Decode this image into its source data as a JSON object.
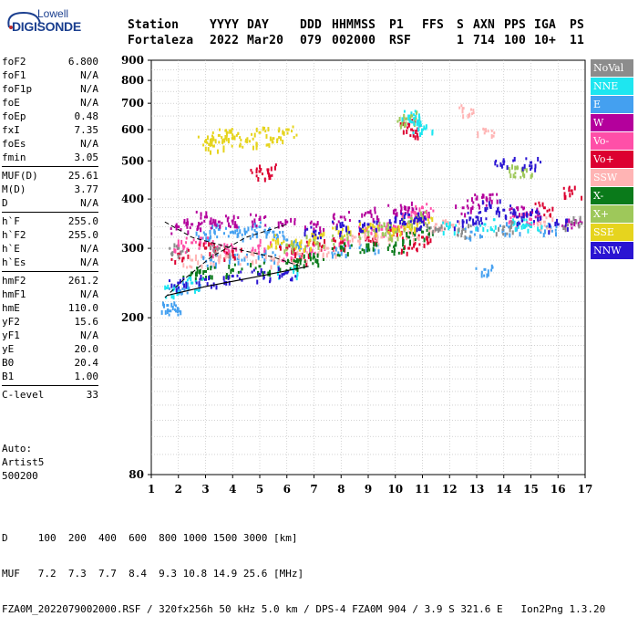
{
  "logo": {
    "line1": "Lowell",
    "line2": "DIGISONDE"
  },
  "header": {
    "labels": [
      "Station",
      "YYYY",
      "DAY",
      "DDD",
      "HHMMSS",
      "P1",
      "FFS",
      "S",
      "AXN",
      "PPS",
      "IGA",
      "PS"
    ],
    "values": [
      "Fortaleza",
      "2022",
      "Mar20",
      "079",
      "002000",
      "RSF",
      "",
      "1",
      "714",
      "100",
      "10+",
      "11"
    ]
  },
  "params": [
    [
      {
        "name": "foF2",
        "value": "6.800"
      },
      {
        "name": "foF1",
        "value": "N/A"
      },
      {
        "name": "foF1p",
        "value": "N/A"
      },
      {
        "name": "foE",
        "value": "N/A"
      },
      {
        "name": "foEp",
        "value": "0.48"
      },
      {
        "name": "fxI",
        "value": "7.35"
      },
      {
        "name": "foEs",
        "value": "N/A"
      },
      {
        "name": "fmin",
        "value": "3.05"
      }
    ],
    [
      {
        "name": "MUF(D)",
        "value": "25.61"
      },
      {
        "name": "M(D)",
        "value": "3.77"
      },
      {
        "name": "D",
        "value": "N/A"
      }
    ],
    [
      {
        "name": "h`F",
        "value": "255.0"
      },
      {
        "name": "h`F2",
        "value": "255.0"
      },
      {
        "name": "h`E",
        "value": "N/A"
      },
      {
        "name": "h`Es",
        "value": "N/A"
      }
    ],
    [
      {
        "name": "hmF2",
        "value": "261.2"
      },
      {
        "name": "hmF1",
        "value": "N/A"
      },
      {
        "name": "hmE",
        "value": "110.0"
      },
      {
        "name": "yF2",
        "value": "15.6"
      },
      {
        "name": "yF1",
        "value": "N/A"
      },
      {
        "name": "yE",
        "value": "20.0"
      },
      {
        "name": "B0",
        "value": "20.4"
      },
      {
        "name": "B1",
        "value": "1.00"
      }
    ],
    [
      {
        "name": "C-level",
        "value": "33"
      }
    ]
  ],
  "auto": [
    "Auto:",
    "Artist5",
    "500200"
  ],
  "legend": [
    {
      "label": "NoVal",
      "color": "#8c8c8c"
    },
    {
      "label": "NNE",
      "color": "#1ee6f0"
    },
    {
      "label": "E",
      "color": "#44a0f0"
    },
    {
      "label": "W",
      "color": "#b4009c"
    },
    {
      "label": "Vo-",
      "color": "#ff4fa8"
    },
    {
      "label": "Vo+",
      "color": "#dc0030"
    },
    {
      "label": "SSW",
      "color": "#ffb4b4"
    },
    {
      "label": "X-",
      "color": "#0a7a1a"
    },
    {
      "label": "X+",
      "color": "#9ec85a"
    },
    {
      "label": "SSE",
      "color": "#e6d41e"
    },
    {
      "label": "NNW",
      "color": "#2a14d2"
    }
  ],
  "footer": {
    "d_row": "D     100  200  400  600  800 1000 1500 3000 [km]",
    "muf_row": "MUF   7.2  7.3  7.7  8.4  9.3 10.8 14.9 25.6 [MHz]",
    "info": "FZA0M_2022079002000.RSF / 320fx256h 50 kHz 5.0 km / DPS-4 FZA0M 904 / 3.9 S 321.6 E   Ion2Png 1.3.20"
  },
  "chart_data": {
    "type": "scatter",
    "xlabel": "",
    "ylabel": "",
    "xlim": [
      1,
      17
    ],
    "ylim": [
      80,
      900
    ],
    "y_scale": "log",
    "xticks": [
      1,
      2,
      3,
      4,
      5,
      6,
      7,
      8,
      9,
      10,
      11,
      12,
      13,
      14,
      15,
      16,
      17
    ],
    "yticks": [
      80,
      200,
      300,
      400,
      500,
      600,
      700,
      800,
      900
    ],
    "grid": true,
    "legend_position": "right",
    "series": [
      {
        "name": "E",
        "color": "#44a0f0",
        "points": [
          [
            1.6,
            215
          ],
          [
            1.7,
            208
          ],
          [
            2.0,
            235
          ],
          [
            2.5,
            245
          ],
          [
            3.0,
            325
          ],
          [
            3.5,
            335
          ],
          [
            4.0,
            330
          ],
          [
            4.5,
            330
          ],
          [
            5.0,
            340
          ],
          [
            5.5,
            330
          ],
          [
            6.0,
            315
          ],
          [
            6.5,
            300
          ],
          [
            3.2,
            280
          ],
          [
            4.2,
            282
          ],
          [
            5.2,
            290
          ],
          [
            8.0,
            300
          ],
          [
            9.0,
            300
          ],
          [
            13.3,
            265
          ],
          [
            12.8,
            330
          ],
          [
            14.2,
            340
          ],
          [
            15.6,
            340
          ]
        ]
      },
      {
        "name": "W",
        "color": "#b4009c",
        "points": [
          [
            2.0,
            340
          ],
          [
            2.5,
            345
          ],
          [
            3.0,
            360
          ],
          [
            3.5,
            350
          ],
          [
            4.0,
            352
          ],
          [
            5.0,
            355
          ],
          [
            6.0,
            350
          ],
          [
            7.0,
            345
          ],
          [
            8.0,
            360
          ],
          [
            9.0,
            370
          ],
          [
            10.0,
            375
          ],
          [
            10.5,
            380
          ],
          [
            11.0,
            365
          ],
          [
            12.5,
            380
          ],
          [
            13.0,
            400
          ],
          [
            13.5,
            410
          ],
          [
            14.5,
            380
          ],
          [
            15.0,
            370
          ],
          [
            16.5,
            345
          ]
        ]
      },
      {
        "name": "Vo-",
        "color": "#ff4fa8",
        "points": [
          [
            2.0,
            305
          ],
          [
            2.5,
            310
          ],
          [
            3.0,
            310
          ],
          [
            3.5,
            300
          ],
          [
            4.0,
            300
          ],
          [
            5.0,
            305
          ],
          [
            6.0,
            290
          ],
          [
            7.0,
            305
          ],
          [
            8.0,
            320
          ],
          [
            9.0,
            330
          ],
          [
            9.5,
            335
          ],
          [
            10.0,
            340
          ],
          [
            10.5,
            360
          ],
          [
            11.0,
            380
          ],
          [
            14.5,
            360
          ],
          [
            15.0,
            355
          ]
        ]
      },
      {
        "name": "Vo+",
        "color": "#dc0030",
        "points": [
          [
            2.0,
            290
          ],
          [
            3.0,
            300
          ],
          [
            4.0,
            295
          ],
          [
            5.0,
            470
          ],
          [
            5.3,
            475
          ],
          [
            6.0,
            300
          ],
          [
            6.5,
            282
          ],
          [
            7.0,
            310
          ],
          [
            8.0,
            310
          ],
          [
            9.0,
            320
          ],
          [
            10.0,
            330
          ],
          [
            10.5,
            300
          ],
          [
            11.0,
            320
          ],
          [
            10.5,
            620
          ],
          [
            10.6,
            600
          ],
          [
            15.5,
            380
          ],
          [
            16.5,
            420
          ]
        ]
      },
      {
        "name": "SSW",
        "color": "#ffb4b4",
        "points": [
          [
            2.5,
            280
          ],
          [
            3.5,
            285
          ],
          [
            4.5,
            285
          ],
          [
            5.5,
            280
          ],
          [
            6.5,
            290
          ],
          [
            7.5,
            300
          ],
          [
            8.5,
            320
          ],
          [
            9.5,
            320
          ],
          [
            10.5,
            330
          ],
          [
            11.5,
            345
          ],
          [
            12.0,
            345
          ],
          [
            13.3,
            600
          ],
          [
            12.5,
            680
          ],
          [
            15.5,
            350
          ]
        ]
      },
      {
        "name": "X-",
        "color": "#0a7a1a",
        "points": [
          [
            2.5,
            260
          ],
          [
            3.0,
            262
          ],
          [
            4.0,
            265
          ],
          [
            5.0,
            270
          ],
          [
            6.0,
            275
          ],
          [
            6.5,
            280
          ],
          [
            7.0,
            285
          ],
          [
            8.0,
            300
          ],
          [
            9.0,
            300
          ],
          [
            10.0,
            305
          ],
          [
            10.5,
            320
          ],
          [
            11.0,
            330
          ]
        ]
      },
      {
        "name": "X+",
        "color": "#9ec85a",
        "points": [
          [
            6.0,
            305
          ],
          [
            7.0,
            315
          ],
          [
            8.0,
            320
          ],
          [
            9.0,
            330
          ],
          [
            9.5,
            340
          ],
          [
            10.0,
            330
          ],
          [
            10.5,
            350
          ],
          [
            11.0,
            360
          ],
          [
            10.4,
            640
          ],
          [
            10.6,
            650
          ],
          [
            14.5,
            480
          ],
          [
            14.7,
            470
          ]
        ]
      },
      {
        "name": "SSE",
        "color": "#e6d41e",
        "points": [
          [
            3.0,
            560
          ],
          [
            3.3,
            545
          ],
          [
            3.5,
            580
          ],
          [
            4.0,
            570
          ],
          [
            4.5,
            560
          ],
          [
            3.8,
            590
          ],
          [
            5.5,
            570
          ],
          [
            5.0,
            590
          ],
          [
            6.0,
            600
          ],
          [
            5.5,
            315
          ],
          [
            6.5,
            310
          ],
          [
            7.0,
            320
          ],
          [
            8.0,
            330
          ],
          [
            9.0,
            340
          ],
          [
            10.0,
            335
          ],
          [
            10.5,
            340
          ],
          [
            11.0,
            350
          ]
        ]
      },
      {
        "name": "NNE",
        "color": "#1ee6f0",
        "points": [
          [
            1.8,
            235
          ],
          [
            2.5,
            245
          ],
          [
            6.0,
            262
          ],
          [
            10.5,
            650
          ],
          [
            10.7,
            640
          ],
          [
            11.0,
            600
          ],
          [
            12.0,
            340
          ],
          [
            13.3,
            345
          ],
          [
            14.5,
            345
          ],
          [
            15.0,
            340
          ]
        ]
      },
      {
        "name": "NNW",
        "color": "#2a14d2",
        "points": [
          [
            2.0,
            245
          ],
          [
            3.0,
            250
          ],
          [
            4.0,
            255
          ],
          [
            5.0,
            258
          ],
          [
            6.0,
            260
          ],
          [
            7.0,
            330
          ],
          [
            8.0,
            340
          ],
          [
            9.0,
            345
          ],
          [
            10.0,
            350
          ],
          [
            10.5,
            365
          ],
          [
            11.0,
            350
          ],
          [
            12.5,
            350
          ],
          [
            13.0,
            360
          ],
          [
            13.5,
            385
          ],
          [
            14.0,
            375
          ],
          [
            14.5,
            360
          ],
          [
            15.0,
            365
          ],
          [
            16.0,
            345
          ],
          [
            15.0,
            495
          ],
          [
            14.0,
            498
          ]
        ]
      },
      {
        "name": "NoVal",
        "color": "#8c8c8c",
        "points": [
          [
            2.0,
            300
          ],
          [
            3.5,
            300
          ],
          [
            11.5,
            335
          ],
          [
            12.5,
            335
          ],
          [
            14.0,
            340
          ],
          [
            16.5,
            350
          ]
        ]
      }
    ]
  }
}
